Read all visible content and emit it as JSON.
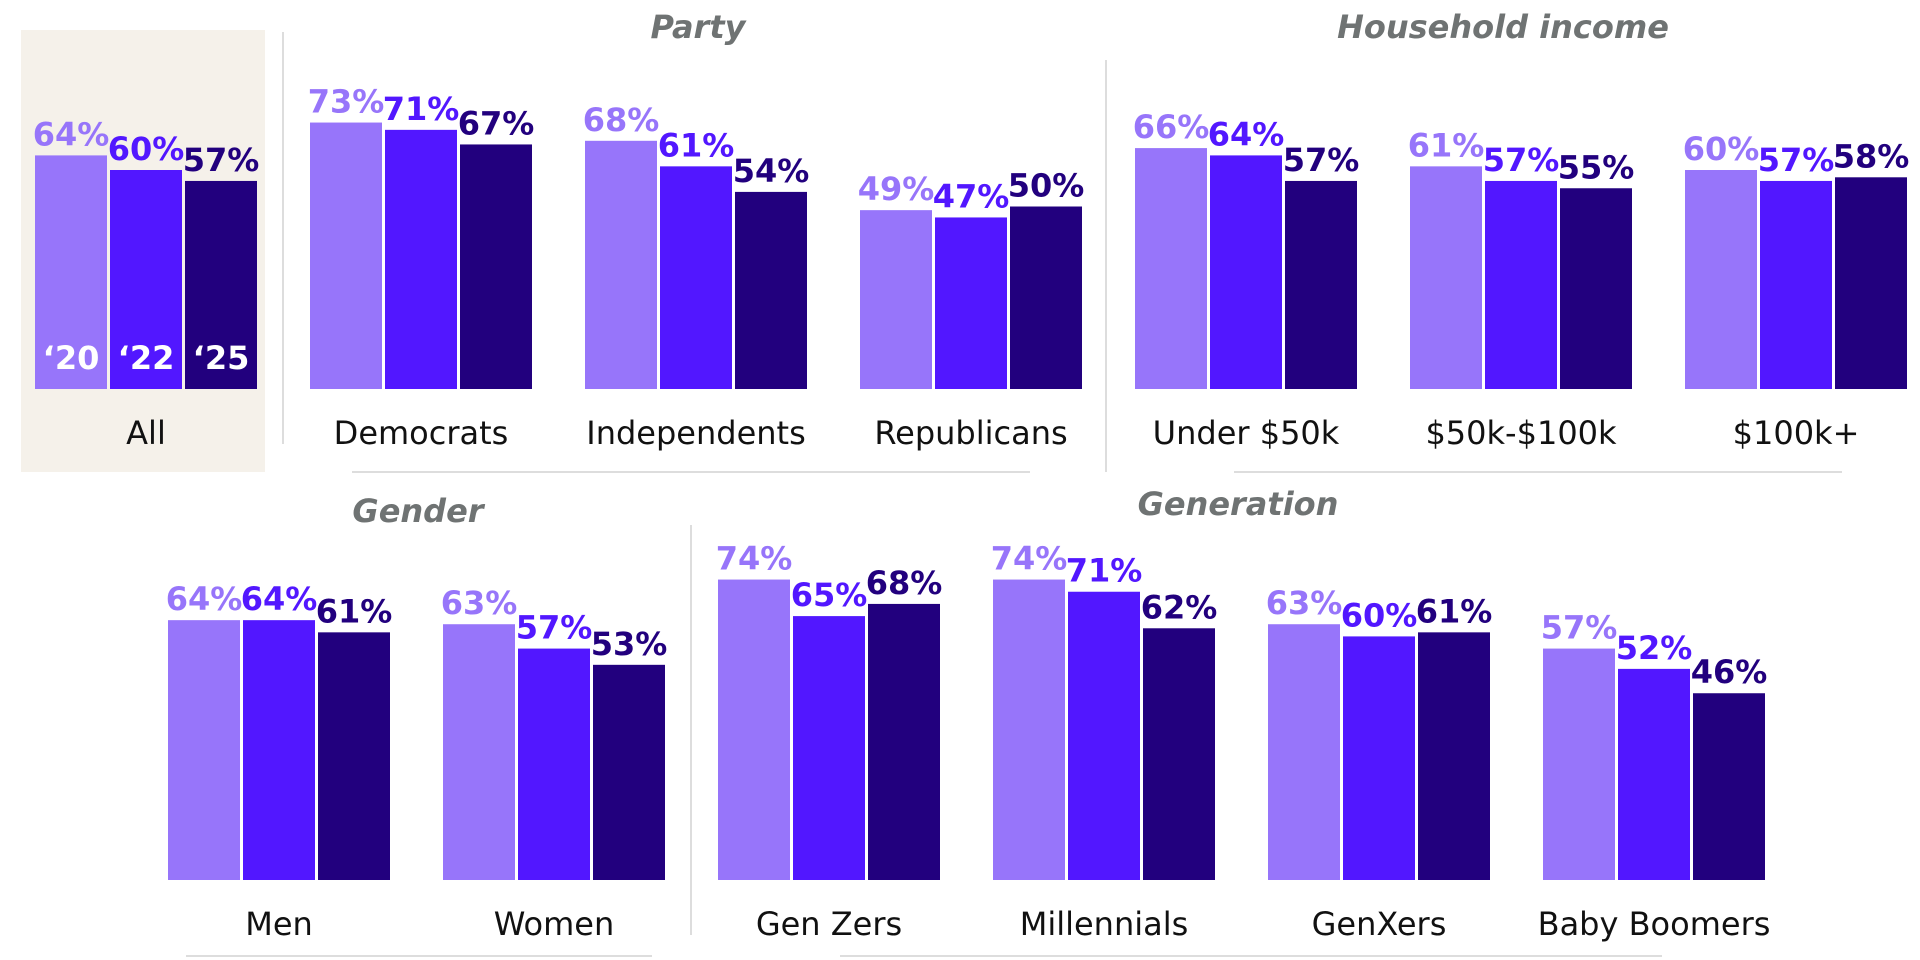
{
  "chart_data": {
    "type": "bar",
    "series": [
      {
        "name": "‘20",
        "color": "#9775fa"
      },
      {
        "name": "‘22",
        "color": "#5217ff"
      },
      {
        "name": "‘25",
        "color": "#22007e"
      }
    ],
    "groups": [
      {
        "title": "",
        "categories": [
          {
            "label": "All",
            "values": [
              64,
              60,
              57
            ],
            "labels": [
              "64%",
              "60%",
              "57%"
            ]
          }
        ]
      },
      {
        "title": "Party",
        "categories": [
          {
            "label": "Democrats",
            "values": [
              73,
              71,
              67
            ],
            "labels": [
              "73%",
              "71%",
              "67%"
            ]
          },
          {
            "label": "Independents",
            "values": [
              68,
              61,
              54
            ],
            "labels": [
              "68%",
              "61%",
              "54%"
            ]
          },
          {
            "label": "Republicans",
            "values": [
              49,
              47,
              50
            ],
            "labels": [
              "49%",
              "47%",
              "50%"
            ]
          }
        ]
      },
      {
        "title": "Household income",
        "categories": [
          {
            "label": "Under $50k",
            "values": [
              66,
              64,
              57
            ],
            "labels": [
              "66%",
              "64%",
              "57%"
            ]
          },
          {
            "label": "$50k-$100k",
            "values": [
              61,
              57,
              55
            ],
            "labels": [
              "61%",
              "57%",
              "55%"
            ]
          },
          {
            "label": "$100k+",
            "values": [
              60,
              57,
              58
            ],
            "labels": [
              "60%",
              "57%",
              "58%"
            ]
          }
        ]
      },
      {
        "title": "Gender",
        "categories": [
          {
            "label": "Men",
            "values": [
              64,
              64,
              61
            ],
            "labels": [
              "64%",
              "64%",
              "61%"
            ]
          },
          {
            "label": "Women",
            "values": [
              63,
              57,
              53
            ],
            "labels": [
              "63%",
              "57%",
              "53%"
            ]
          }
        ]
      },
      {
        "title": "Generation",
        "categories": [
          {
            "label": "Gen Zers",
            "values": [
              74,
              65,
              68
            ],
            "labels": [
              "74%",
              "65%",
              "68%"
            ]
          },
          {
            "label": "Millennials",
            "values": [
              74,
              71,
              62
            ],
            "labels": [
              "74%",
              "71%",
              "62%"
            ]
          },
          {
            "label": "GenXers",
            "values": [
              63,
              60,
              61
            ],
            "labels": [
              "63%",
              "60%",
              "61%"
            ]
          },
          {
            "label": "Baby Boomers",
            "values": [
              57,
              52,
              46
            ],
            "labels": [
              "57%",
              "52%",
              "46%"
            ]
          }
        ]
      }
    ],
    "ylim": [
      0,
      80
    ],
    "grid": false,
    "legend": "inside-bars (All)"
  }
}
